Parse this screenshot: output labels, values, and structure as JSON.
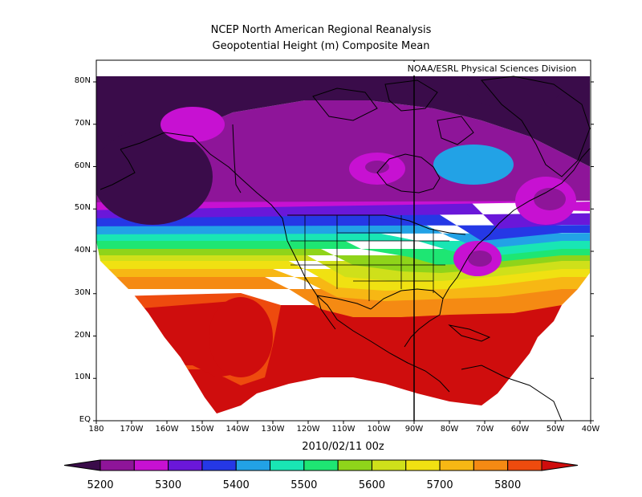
{
  "title_line1": "NCEP North American Regional Reanalysis",
  "title_line2": "Geopotential Height (m) Composite Mean",
  "credit": "NOAA/ESRL Physical Sciences Division",
  "date": "2010/02/11 00z",
  "map": {
    "lon_range": [
      -180,
      -40
    ],
    "lat_range": [
      0,
      85
    ],
    "x_ticks": [
      "180",
      "170W",
      "160W",
      "150W",
      "140W",
      "130W",
      "120W",
      "110W",
      "100W",
      "90W",
      "80W",
      "70W",
      "60W",
      "50W",
      "40W"
    ],
    "y_ticks": [
      "EQ",
      "10N",
      "20N",
      "30N",
      "40N",
      "50N",
      "60N",
      "70N",
      "80N"
    ],
    "reference_meridian": "90W",
    "colors": {
      "dark_purple": "#3a0c4a",
      "purple": "#8e1599",
      "magenta": "#c711d2",
      "violet": "#6a17d9",
      "blue": "#2538e6",
      "sky": "#22a2e6",
      "cyan": "#19e6b4",
      "green": "#1ee673",
      "lime": "#8fd41a",
      "yellow_green": "#cfe01a",
      "yellow": "#f0e112",
      "gold": "#f7b714",
      "orange": "#f58a13",
      "red_orange": "#ee4b0e",
      "red": "#cf0d0d"
    }
  },
  "colorbar": {
    "labels": [
      "5200",
      "5300",
      "5400",
      "5500",
      "5600",
      "5700",
      "5800"
    ],
    "colors": [
      "#8e1599",
      "#c711d2",
      "#6a17d9",
      "#2538e6",
      "#22a2e6",
      "#19e6b4",
      "#1ee673",
      "#8fd41a",
      "#cfe01a",
      "#f0e112",
      "#f7b714",
      "#f58a13",
      "#ee4b0e"
    ],
    "low_color": "#3a0c4a",
    "high_color": "#cf0d0d"
  }
}
